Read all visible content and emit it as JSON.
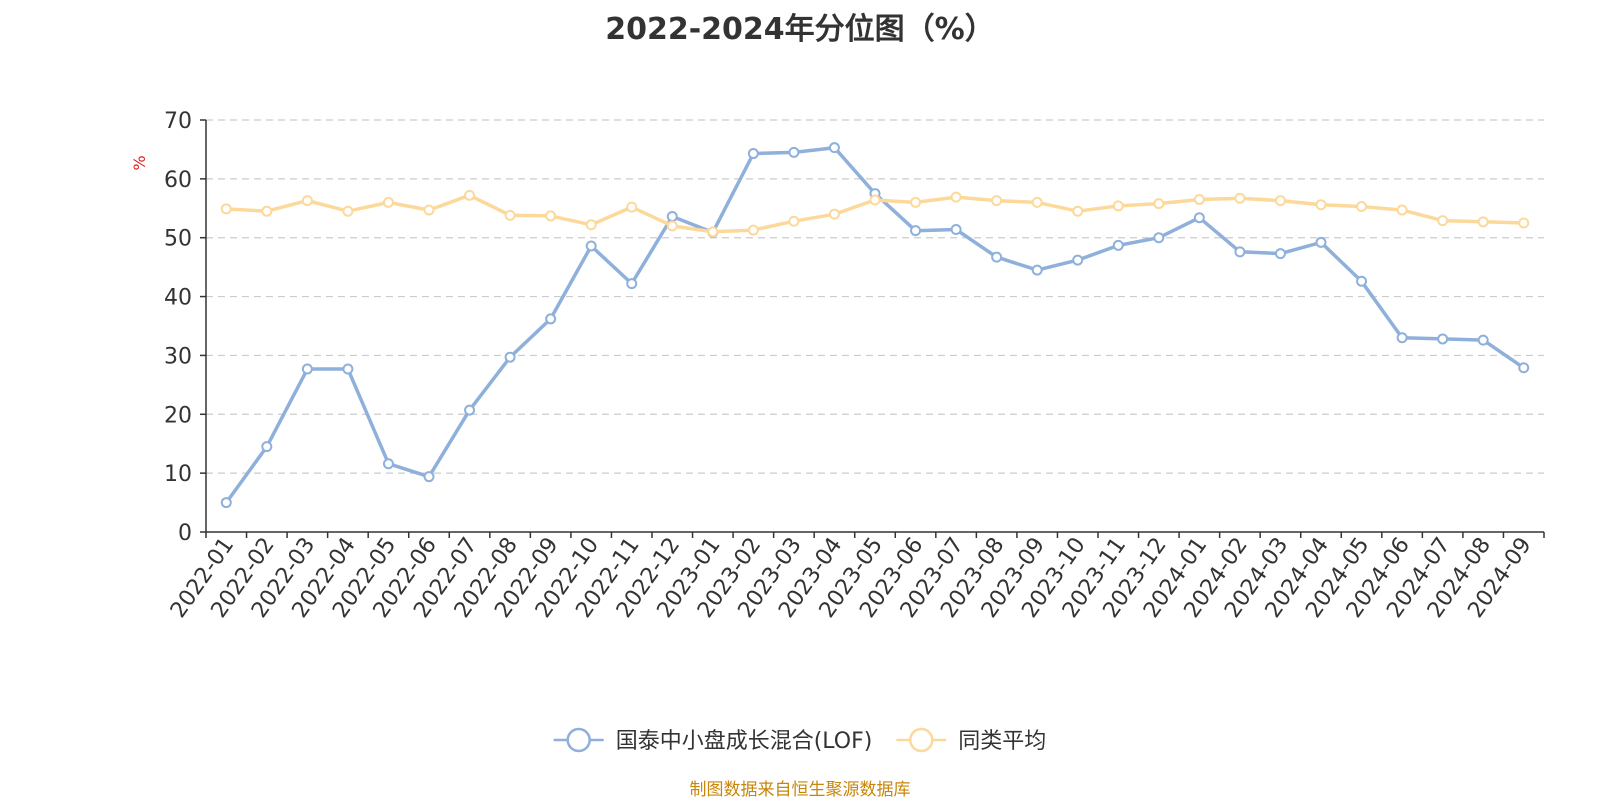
{
  "chart_data": {
    "type": "line",
    "title": "2022-2024年分位图（%）",
    "ylabel": "%",
    "xlabel": "",
    "ylim": [
      0,
      70
    ],
    "yticks": [
      0,
      10,
      20,
      30,
      40,
      50,
      60,
      70
    ],
    "grid": true,
    "legend_position": "bottom-center",
    "categories": [
      "2022-01",
      "2022-02",
      "2022-03",
      "2022-04",
      "2022-05",
      "2022-06",
      "2022-07",
      "2022-08",
      "2022-09",
      "2022-10",
      "2022-11",
      "2022-12",
      "2023-01",
      "2023-02",
      "2023-03",
      "2023-04",
      "2023-05",
      "2023-06",
      "2023-07",
      "2023-08",
      "2023-09",
      "2023-10",
      "2023-11",
      "2023-12",
      "2024-01",
      "2024-02",
      "2024-03",
      "2024-04",
      "2024-05",
      "2024-06",
      "2024-07",
      "2024-08",
      "2024-09"
    ],
    "series": [
      {
        "name": "国泰中小盘成长混合(LOF)",
        "color": "#8eb0da",
        "values": [
          5.0,
          14.5,
          27.7,
          27.7,
          11.6,
          9.4,
          20.7,
          29.7,
          36.2,
          48.6,
          42.2,
          53.6,
          50.9,
          64.3,
          64.5,
          65.3,
          57.5,
          51.2,
          51.4,
          46.7,
          44.5,
          46.2,
          48.7,
          50.0,
          53.4,
          47.6,
          47.3,
          49.2,
          42.6,
          33.0,
          32.8,
          32.6,
          27.9
        ]
      },
      {
        "name": "同类平均",
        "color": "#fcd99a",
        "values": [
          54.9,
          54.5,
          56.3,
          54.5,
          56.0,
          54.7,
          57.2,
          53.8,
          53.7,
          52.2,
          55.2,
          52.0,
          51.0,
          51.3,
          52.8,
          54.0,
          56.4,
          56.0,
          56.9,
          56.3,
          56.0,
          54.5,
          55.4,
          55.8,
          56.5,
          56.7,
          56.3,
          55.6,
          55.3,
          54.7,
          52.9,
          52.7,
          52.5
        ]
      }
    ]
  },
  "source_note": "制图数据来自恒生聚源数据库"
}
